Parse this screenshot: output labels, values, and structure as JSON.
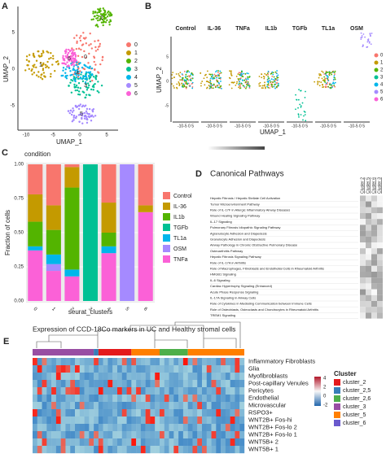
{
  "panels": {
    "A": {
      "letter": "A",
      "xlabel": "UMAP_1",
      "ylabel": "UMAP_2",
      "xticks": [
        "-10",
        "-5",
        "0",
        "5"
      ],
      "yticks": [
        "-5",
        "0",
        "5"
      ],
      "legend": [
        "0",
        "1",
        "2",
        "3",
        "4",
        "5",
        "6"
      ],
      "colors": [
        "#F8766D",
        "#C49A00",
        "#53B400",
        "#00C094",
        "#00B6EB",
        "#A58AFF",
        "#FB61D7"
      ]
    },
    "B": {
      "letter": "B",
      "conditions": [
        "Control",
        "IL-36",
        "TNFa",
        "IL1b",
        "TGFb",
        "TL1a",
        "OSM"
      ],
      "xlabel": "UMAP_1",
      "ylabel": "UMAP_2",
      "xticks": "-10-5 0 5",
      "yticks": [
        "-5",
        "0",
        "5"
      ],
      "legend": [
        "0",
        "1",
        "2",
        "3",
        "4",
        "5",
        "6"
      ]
    },
    "D": {
      "letter": "D",
      "title": "Canonical Pathways",
      "columns": [
        "Cluster 2",
        "Cluster 5",
        "Cluster 6",
        "Cluster 3"
      ],
      "pathways": [
        "Hepatic Fibrosis / Hepatic Stellate Cell Activation",
        "Tumor Microenvironment Pathway",
        "Role of IL-17F in Allergic Inflammatory Airway Diseases",
        "Wound Healing Signaling Pathway",
        "IL-17 Signaling",
        "Pulmonary Fibrosis Idiopathic Signaling Pathway",
        "Agranulocyte Adhesion and Diapedesis",
        "Granulocyte Adhesion and Diapedesis",
        "Airway Pathology in Chronic Obstructive Pulmonary Disease",
        "Osteoarthritis Pathway",
        "Hepatic Fibrosis Signaling Pathway",
        "Role of IL-17A in Arthritis",
        "Role of Macrophages, Fibroblasts and Endothelial Cells in Rheumatoid Arthritis",
        "HMGB1 Signaling",
        "IL-6 Signaling",
        "Cardiac Hypertrophy Signaling (Enhanced)",
        "Acute Phase Response Signaling",
        "IL-17A Signaling in Airway Cells",
        "Role of Cytokines in Mediating Communication between Immune Cells",
        "Role of Osteoblasts, Osteoclasts and Chondrocytes in Rheumatoid Arthritis",
        "TREM1 Signaling"
      ]
    },
    "E": {
      "letter": "E",
      "title": "Expression of CCD-18Co markers in UC and Healthy stromal cells",
      "rows": [
        "Inflammatory Fibroblasts",
        "Glia",
        "Myofibroblasts",
        "Post-capillary Venules",
        "Pericytes",
        "Endothelial",
        "Microvascular",
        "RSPO3+",
        "WNT2B+ Fos-hi",
        "WNT2B+ Fos-lo 2",
        "WNT2B+ Fos-lo 1",
        "WNT5B+ 2",
        "WNT5B+ 1"
      ],
      "scale": [
        "4",
        "2",
        "0",
        "-2"
      ],
      "legend_title": "Cluster",
      "clusters": [
        "cluster_2",
        "cluster_2,5",
        "cluster_2,6",
        "cluster_3",
        "cluster_5",
        "cluster_6"
      ],
      "cluster_colors": [
        "#E41A1C",
        "#377EB8",
        "#4DAF4A",
        "#984EA3",
        "#FF7F00",
        "#6A5ACD"
      ]
    }
  },
  "chart_data": {
    "type": "bar",
    "letter": "C",
    "legend_title": "condition",
    "xlabel": "seurat_clusters",
    "ylabel": "Fraction of cells",
    "categories": [
      "0",
      "1",
      "2",
      "3",
      "4",
      "5",
      "6"
    ],
    "ylim": [
      0,
      1
    ],
    "yticks": [
      {
        "value": 0,
        "label": "0.00"
      },
      {
        "value": 0.25,
        "label": "0.25"
      },
      {
        "value": 0.5,
        "label": "0.50"
      },
      {
        "value": 0.75,
        "label": "0.75"
      },
      {
        "value": 1,
        "label": "1.00"
      }
    ],
    "series": [
      {
        "name": "Control",
        "color": "#F8766D",
        "values": [
          0.22,
          0.3,
          0.02,
          0,
          0.28,
          0,
          0.3
        ]
      },
      {
        "name": "IL-36",
        "color": "#C49A00",
        "values": [
          0.2,
          0.18,
          0.15,
          0,
          0.22,
          0,
          0.05
        ]
      },
      {
        "name": "IL1b",
        "color": "#53B400",
        "values": [
          0.18,
          0.18,
          0.6,
          0,
          0.1,
          0,
          0
        ]
      },
      {
        "name": "TGFb",
        "color": "#00C094",
        "values": [
          0,
          0,
          0,
          1,
          0,
          0,
          0
        ]
      },
      {
        "name": "TL1a",
        "color": "#00B6EB",
        "values": [
          0.03,
          0.07,
          0.05,
          0,
          0.05,
          0,
          0
        ]
      },
      {
        "name": "OSM",
        "color": "#A58AFF",
        "values": [
          0,
          0.05,
          0,
          0,
          0,
          1,
          0
        ]
      },
      {
        "name": "TNFa",
        "color": "#FB61D7",
        "values": [
          0.37,
          0.22,
          0.18,
          0,
          0.35,
          0,
          0.65
        ]
      }
    ]
  }
}
